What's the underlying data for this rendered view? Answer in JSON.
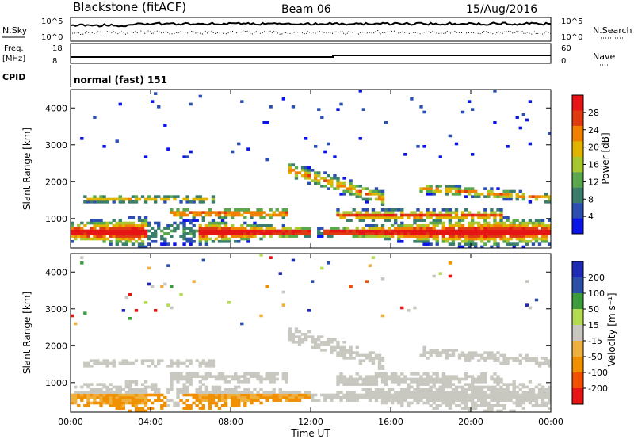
{
  "header": {
    "station": "Blackstone (fitACF)",
    "beam": "Beam 06",
    "date": "15/Aug/2016"
  },
  "summary": {
    "nsky_label": "N.Sky",
    "nsearch_label": "N.Search",
    "freq_label_1": "Freq.",
    "freq_label_2": "[MHz]",
    "nave_label": "Nave",
    "cpid_label": "CPID",
    "cpid_text": "normal (fast) 151",
    "left_ticks_noise": [
      "10^5",
      "10^0"
    ],
    "right_ticks_noise": [
      "10^5",
      "10^0"
    ],
    "left_ticks_freq": [
      "18",
      "8"
    ],
    "right_ticks_nave": [
      "60",
      "0"
    ]
  },
  "colors": {
    "power": [
      "#0a14e6",
      "#2a4fb0",
      "#3a7d6a",
      "#5aa84c",
      "#a8c832",
      "#e0b400",
      "#f08000",
      "#e03a10",
      "#e61414"
    ],
    "velocity": [
      "#e61414",
      "#f05000",
      "#f09000",
      "#f0b040",
      "#c8c8c0",
      "#b4dc50",
      "#3c9c3c",
      "#2a4fa8",
      "#1e2ab4"
    ]
  },
  "chart_data": [
    {
      "type": "heatmap",
      "title": "Power",
      "xlabel": "",
      "ylabel": "Slant Range [km]",
      "x_ticks": [
        "00:00",
        "04:00",
        "08:00",
        "12:00",
        "16:00",
        "20:00",
        "00:00"
      ],
      "y_ticks": [
        "1000",
        "2000",
        "3000",
        "4000"
      ],
      "ylim": [
        200,
        4500
      ],
      "colorbar": {
        "label": "Power [dB]",
        "ticks": [
          "4",
          "8",
          "12",
          "16",
          "20",
          "24",
          "28"
        ],
        "range": [
          0,
          30
        ]
      }
    },
    {
      "type": "heatmap",
      "title": "Velocity",
      "xlabel": "Time UT",
      "ylabel": "Slant Range [km]",
      "x_ticks": [
        "00:00",
        "04:00",
        "08:00",
        "12:00",
        "16:00",
        "20:00",
        "00:00"
      ],
      "y_ticks": [
        "1000",
        "2000",
        "3000",
        "4000"
      ],
      "ylim": [
        200,
        4500
      ],
      "colorbar": {
        "label": "Velocity [m s⁻¹]",
        "ticks": [
          "200",
          "100",
          "50",
          "15",
          "-15",
          "-50",
          "-100",
          "-200"
        ],
        "range": [
          -250,
          250
        ]
      }
    }
  ]
}
